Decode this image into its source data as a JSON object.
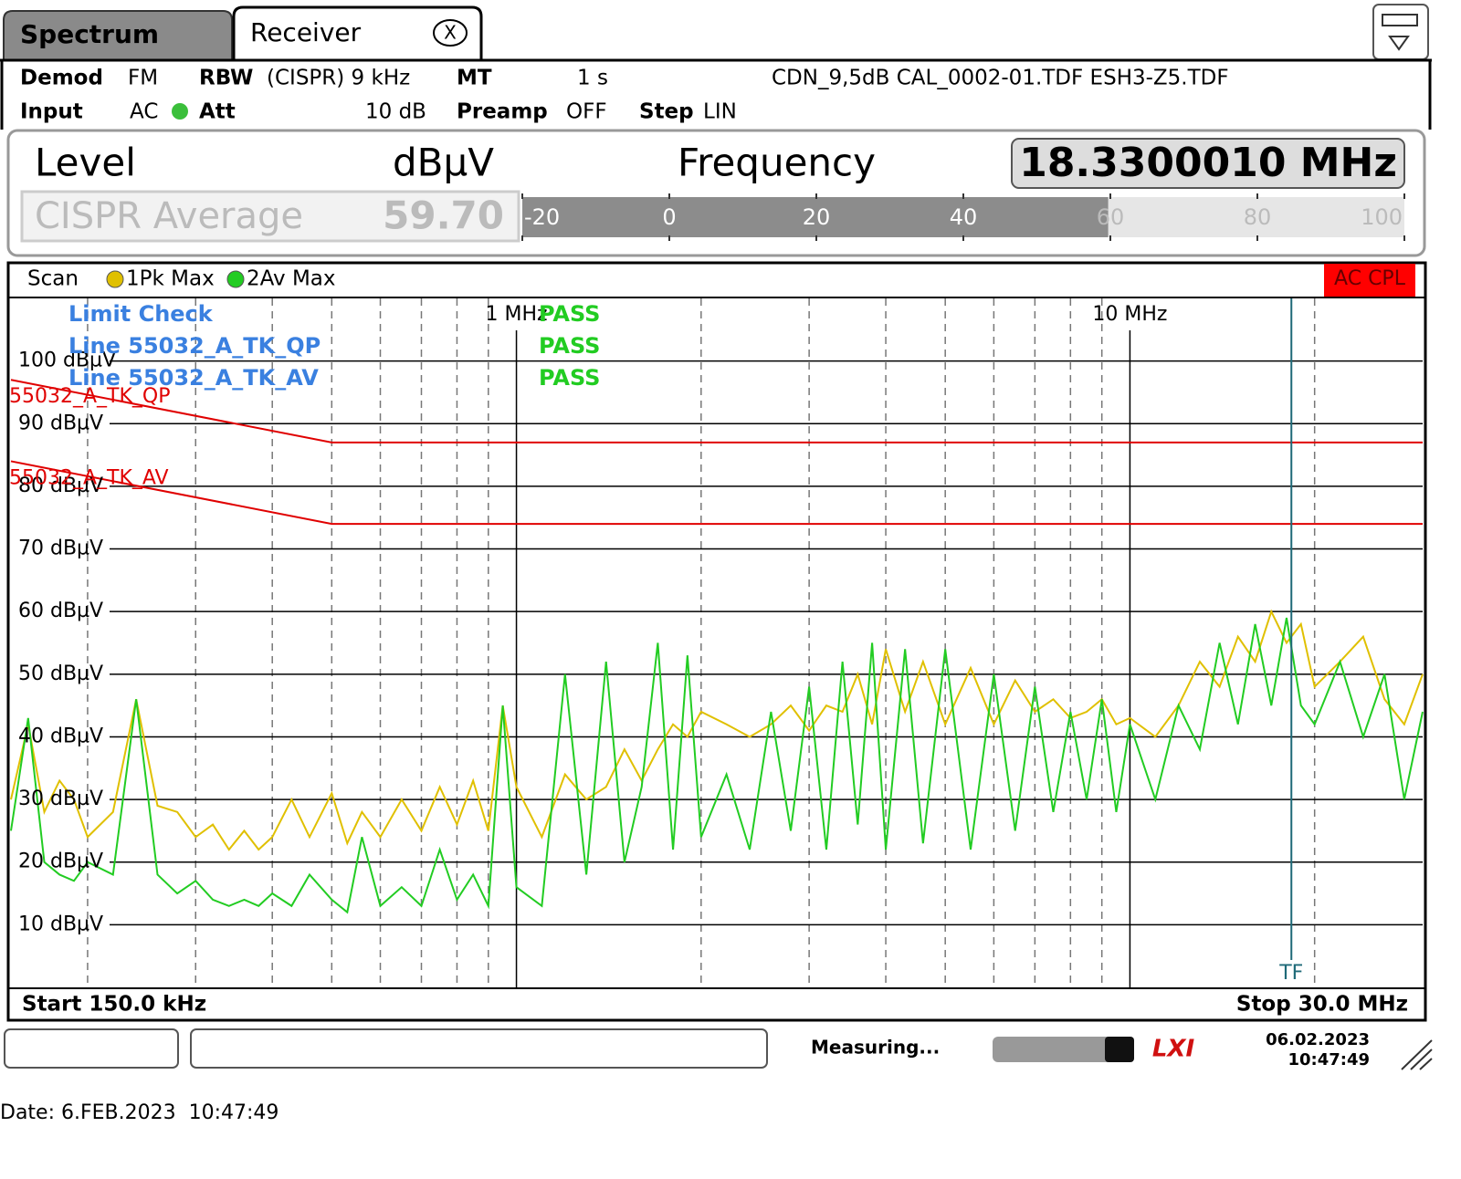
{
  "tabs": [
    "Spectrum",
    "Receiver"
  ],
  "close": "X",
  "settings": {
    "demod_label": "Demod",
    "demod": "FM",
    "rbw_label": "RBW",
    "rbw": "(CISPR) 9 kHz",
    "mt_label": "MT",
    "mt": "1 s",
    "transducers": "CDN_9,5dB CAL_0002-01.TDF ESH3-Z5.TDF",
    "input_label": "Input",
    "input": "AC",
    "att_label": "Att",
    "att": "10 dB",
    "preamp_label": "Preamp",
    "preamp": "OFF",
    "step_label": "Step",
    "step": "LIN"
  },
  "readout": {
    "level_label": "Level",
    "unit": "dBµV",
    "frequency_label": "Frequency",
    "frequency": "18.3300010 MHz",
    "detector": "CISPR Average"
  },
  "meter": {
    "values": [
      59.7
    ],
    "value_labels": [
      "59.70"
    ],
    "xlim": [
      -20,
      100
    ],
    "xticks": [
      -20,
      0,
      20,
      40,
      60,
      80,
      100
    ]
  },
  "chart_data": {
    "type": "line",
    "scan_label": "Scan",
    "xscale": "log",
    "grid": true,
    "xlim": [
      0.15,
      30
    ],
    "xticks": [
      {
        "value": 1,
        "label": "1 MHz"
      },
      {
        "value": 10,
        "label": "10 MHz"
      }
    ],
    "xminor": [
      0.2,
      0.3,
      0.4,
      0.5,
      0.6,
      0.7,
      0.8,
      0.9,
      2,
      3,
      4,
      5,
      6,
      7,
      8,
      9,
      20
    ],
    "ylim": [
      0,
      110
    ],
    "yticks": [
      {
        "value": 10,
        "label": "10 dBµV"
      },
      {
        "value": 20,
        "label": "20 dBµV"
      },
      {
        "value": 30,
        "label": "30 dBµV"
      },
      {
        "value": 40,
        "label": "40 dBµV"
      },
      {
        "value": 50,
        "label": "50 dBµV"
      },
      {
        "value": 60,
        "label": "60 dBµV"
      },
      {
        "value": 70,
        "label": "70 dBµV"
      },
      {
        "value": 80,
        "label": "80 dBµV"
      },
      {
        "value": 90,
        "label": "90 dBµV"
      },
      {
        "value": 100,
        "label": "100 dBµV"
      }
    ],
    "x": [
      0.15,
      0.16,
      0.17,
      0.18,
      0.19,
      0.2,
      0.22,
      0.24,
      0.26,
      0.28,
      0.3,
      0.32,
      0.34,
      0.36,
      0.38,
      0.4,
      0.43,
      0.46,
      0.5,
      0.53,
      0.56,
      0.6,
      0.65,
      0.7,
      0.75,
      0.8,
      0.85,
      0.9,
      0.95,
      1.0,
      1.1,
      1.2,
      1.3,
      1.4,
      1.5,
      1.6,
      1.7,
      1.8,
      1.9,
      2.0,
      2.2,
      2.4,
      2.6,
      2.8,
      3.0,
      3.2,
      3.4,
      3.6,
      3.8,
      4.0,
      4.3,
      4.6,
      5.0,
      5.5,
      6,
      6.5,
      7,
      7.5,
      8,
      8.5,
      9,
      9.5,
      10,
      11,
      12,
      13,
      14,
      15,
      16,
      17,
      18,
      19,
      20,
      22,
      24,
      26,
      28,
      30
    ],
    "series": [
      {
        "name": "1Pk Max",
        "color": "#e0c000",
        "values": [
          30,
          42,
          28,
          33,
          30,
          24,
          28,
          46,
          29,
          28,
          24,
          26,
          22,
          25,
          22,
          24,
          30,
          24,
          31,
          23,
          28,
          24,
          30,
          25,
          32,
          26,
          33,
          25,
          45,
          32,
          24,
          34,
          30,
          32,
          38,
          33,
          38,
          42,
          40,
          44,
          42,
          40,
          42,
          45,
          41,
          45,
          44,
          50,
          42,
          54,
          44,
          52,
          42,
          51,
          42,
          49,
          44,
          46,
          43,
          44,
          46,
          42,
          43,
          40,
          45,
          52,
          48,
          56,
          52,
          60,
          55,
          58,
          48,
          52,
          56,
          46,
          42,
          50
        ]
      },
      {
        "name": "2Av Max",
        "color": "#22cc22",
        "values": [
          25,
          43,
          20,
          18,
          17,
          20,
          18,
          46,
          18,
          15,
          17,
          14,
          13,
          14,
          13,
          15,
          13,
          18,
          14,
          12,
          24,
          13,
          16,
          13,
          22,
          14,
          18,
          13,
          45,
          16,
          13,
          50,
          18,
          52,
          20,
          32,
          55,
          22,
          53,
          24,
          34,
          22,
          44,
          25,
          48,
          22,
          52,
          26,
          55,
          22,
          54,
          23,
          54,
          22,
          50,
          25,
          48,
          28,
          44,
          30,
          46,
          28,
          42,
          30,
          45,
          38,
          55,
          42,
          58,
          45,
          59,
          45,
          42,
          52,
          40,
          50,
          30,
          44
        ]
      }
    ],
    "limit_lines": [
      {
        "name": "55032_A_TK_QP",
        "color": "#e00000",
        "x": [
          0.15,
          0.5,
          30
        ],
        "values": [
          97,
          87,
          87
        ]
      },
      {
        "name": "55032_A_TK_AV",
        "color": "#e00000",
        "x": [
          0.15,
          0.5,
          30
        ],
        "values": [
          84,
          74,
          74
        ]
      }
    ],
    "limit_check": {
      "title": "Limit Check",
      "title_result": "PASS",
      "lines": [
        {
          "label": "Line 55032_A_TK_QP",
          "result": "PASS"
        },
        {
          "label": "Line 55032_A_TK_AV",
          "result": "PASS"
        }
      ]
    },
    "marker": {
      "x": 18.33,
      "label": "TF",
      "color": "#1f6a78"
    },
    "coupling": "AC CPL",
    "start": "Start 150.0 kHz",
    "stop": "Stop 30.0 MHz"
  },
  "status": {
    "state": "Measuring...",
    "logo": "LXI",
    "date": "06.02.2023",
    "time": "10:47:49"
  },
  "footer": "Date: 6.FEB.2023  10:47:49"
}
